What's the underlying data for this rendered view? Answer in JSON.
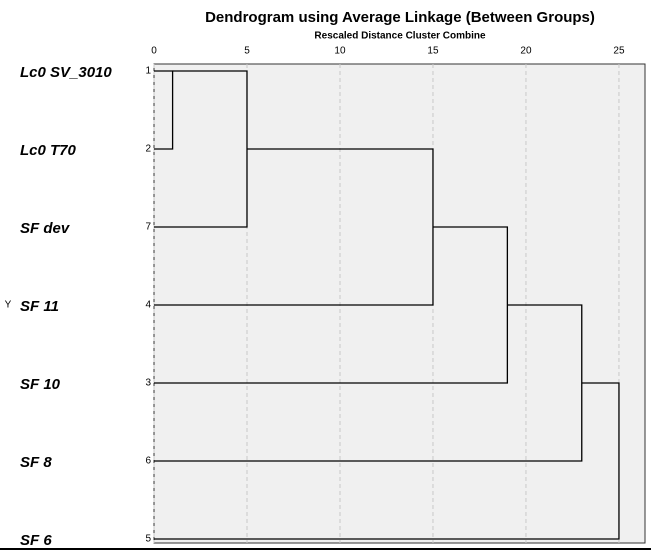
{
  "chart_data": {
    "type": "dendrogram",
    "title": "Dendrogram using Average Linkage (Between Groups)",
    "subtitle": "Rescaled Distance Cluster Combine",
    "y_label": "Y",
    "leaves": [
      {
        "label": "Lc0 SV_3010",
        "case": "1"
      },
      {
        "label": "Lc0 T70",
        "case": "2"
      },
      {
        "label": "SF dev",
        "case": "7"
      },
      {
        "label": "SF 11",
        "case": "4"
      },
      {
        "label": "SF 10",
        "case": "3"
      },
      {
        "label": "SF 8",
        "case": "6"
      },
      {
        "label": "SF 6",
        "case": "5"
      }
    ],
    "merges": [
      {
        "left": 0,
        "right": 1,
        "distance": 1
      },
      {
        "left": 7,
        "right": 2,
        "distance": 5
      },
      {
        "left": 8,
        "right": 3,
        "distance": 15
      },
      {
        "left": 9,
        "right": 4,
        "distance": 19
      },
      {
        "left": 10,
        "right": 5,
        "distance": 23
      },
      {
        "left": 11,
        "right": 6,
        "distance": 25
      }
    ],
    "xlim": [
      0,
      26.4
    ],
    "xticks": [
      0,
      5,
      10,
      15,
      20,
      25
    ],
    "grid": true,
    "background": "#f0f0f0",
    "color": "#000000"
  }
}
